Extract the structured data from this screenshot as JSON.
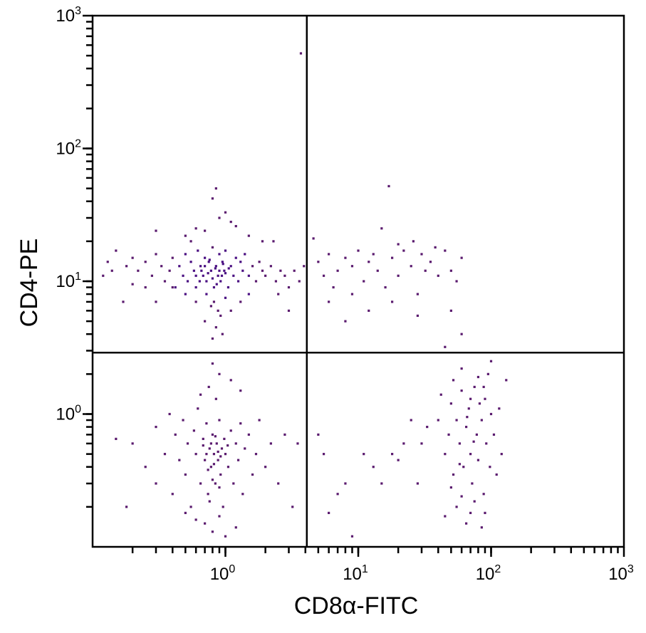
{
  "chart_data": {
    "type": "scatter",
    "title": "",
    "xlabel": "CD8α-FITC",
    "ylabel": "CD4-PE",
    "xscale": "log",
    "yscale": "log",
    "xlim": [
      0.1,
      1000
    ],
    "ylim": [
      0.1,
      1000
    ],
    "x_ticks": [
      {
        "base": "10",
        "exp": "0",
        "value": 1
      },
      {
        "base": "10",
        "exp": "1",
        "value": 10
      },
      {
        "base": "10",
        "exp": "2",
        "value": 100
      },
      {
        "base": "10",
        "exp": "3",
        "value": 1000
      }
    ],
    "y_ticks": [
      {
        "base": "10",
        "exp": "0",
        "value": 1
      },
      {
        "base": "10",
        "exp": "1",
        "value": 10
      },
      {
        "base": "10",
        "exp": "2",
        "value": 100
      },
      {
        "base": "10",
        "exp": "3",
        "value": 1000
      }
    ],
    "grid": false,
    "quadrant_gates": {
      "x": 4.1,
      "y": 2.9
    },
    "colors": {
      "dense": "#4a0f82",
      "sparse": "#5a1a6e",
      "axis": "#000000"
    },
    "points": [
      [
        3.7,
        520
      ],
      [
        0.85,
        50
      ],
      [
        17,
        52
      ],
      [
        0.8,
        42
      ],
      [
        1.0,
        33
      ],
      [
        0.9,
        30
      ],
      [
        1.1,
        28
      ],
      [
        0.6,
        25
      ],
      [
        0.7,
        24
      ],
      [
        1.2,
        26
      ],
      [
        0.5,
        22
      ],
      [
        0.3,
        24
      ],
      [
        1.5,
        22
      ],
      [
        1.9,
        20
      ],
      [
        2.3,
        20
      ],
      [
        0.55,
        20
      ],
      [
        0.15,
        17
      ],
      [
        0.13,
        14
      ],
      [
        0.14,
        12
      ],
      [
        0.12,
        11
      ],
      [
        0.18,
        13
      ],
      [
        0.2,
        15
      ],
      [
        0.22,
        12
      ],
      [
        0.25,
        14
      ],
      [
        0.28,
        11
      ],
      [
        0.3,
        16
      ],
      [
        0.33,
        13
      ],
      [
        0.35,
        10
      ],
      [
        0.38,
        12
      ],
      [
        0.4,
        15
      ],
      [
        0.42,
        9
      ],
      [
        0.45,
        13
      ],
      [
        0.48,
        11
      ],
      [
        0.5,
        16
      ],
      [
        0.52,
        10
      ],
      [
        0.55,
        14
      ],
      [
        0.58,
        12
      ],
      [
        0.6,
        9
      ],
      [
        0.62,
        17
      ],
      [
        0.65,
        13
      ],
      [
        0.68,
        11
      ],
      [
        0.7,
        15
      ],
      [
        0.72,
        10
      ],
      [
        0.75,
        14
      ],
      [
        0.78,
        12
      ],
      [
        0.8,
        18
      ],
      [
        0.82,
        9
      ],
      [
        0.85,
        13
      ],
      [
        0.88,
        11
      ],
      [
        0.9,
        16
      ],
      [
        0.92,
        10
      ],
      [
        0.95,
        14
      ],
      [
        0.98,
        12
      ],
      [
        1.0,
        17
      ],
      [
        1.05,
        9
      ],
      [
        1.1,
        13
      ],
      [
        1.15,
        11
      ],
      [
        1.2,
        15
      ],
      [
        1.25,
        10
      ],
      [
        1.3,
        14
      ],
      [
        1.35,
        12
      ],
      [
        1.4,
        16
      ],
      [
        1.5,
        11
      ],
      [
        1.6,
        13
      ],
      [
        1.7,
        10
      ],
      [
        1.8,
        14
      ],
      [
        1.9,
        12
      ],
      [
        2.0,
        11
      ],
      [
        2.2,
        13
      ],
      [
        2.4,
        10
      ],
      [
        2.6,
        12
      ],
      [
        2.8,
        11
      ],
      [
        3.0,
        9
      ],
      [
        3.3,
        12
      ],
      [
        3.6,
        10
      ],
      [
        3.9,
        13
      ],
      [
        0.66,
        12
      ],
      [
        0.74,
        11.5
      ],
      [
        0.84,
        12.5
      ],
      [
        0.94,
        11
      ],
      [
        0.7,
        13
      ],
      [
        0.8,
        10.5
      ],
      [
        0.9,
        12
      ],
      [
        1.0,
        11.5
      ],
      [
        0.6,
        11
      ],
      [
        0.76,
        14.5
      ],
      [
        0.86,
        9.5
      ],
      [
        1.06,
        12.5
      ],
      [
        0.64,
        10
      ],
      [
        0.96,
        13.5
      ],
      [
        0.72,
        8
      ],
      [
        0.82,
        7
      ],
      [
        0.88,
        6
      ],
      [
        0.92,
        5.5
      ],
      [
        0.78,
        6.5
      ],
      [
        1.0,
        7.5
      ],
      [
        0.7,
        5
      ],
      [
        0.85,
        4.5
      ],
      [
        0.95,
        4
      ],
      [
        0.8,
        3.7
      ],
      [
        1.1,
        6
      ],
      [
        0.6,
        7
      ],
      [
        0.5,
        8
      ],
      [
        1.3,
        7
      ],
      [
        1.5,
        8
      ],
      [
        0.4,
        9
      ],
      [
        2.5,
        8
      ],
      [
        0.3,
        7
      ],
      [
        0.25,
        9
      ],
      [
        0.2,
        9.5
      ],
      [
        3.0,
        6
      ],
      [
        0.17,
        7
      ],
      [
        5,
        14
      ],
      [
        5.5,
        11
      ],
      [
        6,
        16
      ],
      [
        6.5,
        9
      ],
      [
        7,
        12
      ],
      [
        8,
        15
      ],
      [
        9,
        13
      ],
      [
        10,
        17
      ],
      [
        11,
        10
      ],
      [
        12,
        14
      ],
      [
        13,
        16
      ],
      [
        14,
        12
      ],
      [
        15,
        25
      ],
      [
        16,
        9
      ],
      [
        18,
        15
      ],
      [
        20,
        11
      ],
      [
        22,
        17
      ],
      [
        25,
        13
      ],
      [
        28,
        8
      ],
      [
        30,
        16
      ],
      [
        32,
        12
      ],
      [
        35,
        14
      ],
      [
        40,
        11
      ],
      [
        45,
        17
      ],
      [
        50,
        12
      ],
      [
        55,
        10
      ],
      [
        60,
        15
      ],
      [
        38,
        18
      ],
      [
        26,
        20
      ],
      [
        20,
        19
      ],
      [
        9,
        8
      ],
      [
        12,
        6
      ],
      [
        18,
        7
      ],
      [
        28,
        5.5
      ],
      [
        50,
        6
      ],
      [
        60,
        4
      ],
      [
        8,
        5
      ],
      [
        4.6,
        21
      ],
      [
        6,
        7
      ],
      [
        45,
        3.2
      ],
      [
        0.2,
        0.6
      ],
      [
        0.25,
        0.4
      ],
      [
        0.3,
        0.8
      ],
      [
        0.3,
        0.3
      ],
      [
        0.35,
        0.5
      ],
      [
        0.38,
        1.0
      ],
      [
        0.4,
        0.25
      ],
      [
        0.42,
        0.7
      ],
      [
        0.45,
        0.45
      ],
      [
        0.48,
        0.9
      ],
      [
        0.5,
        0.35
      ],
      [
        0.52,
        0.6
      ],
      [
        0.55,
        0.2
      ],
      [
        0.58,
        0.75
      ],
      [
        0.6,
        0.5
      ],
      [
        0.62,
        1.1
      ],
      [
        0.65,
        0.3
      ],
      [
        0.68,
        0.65
      ],
      [
        0.7,
        0.45
      ],
      [
        0.72,
        0.85
      ],
      [
        0.74,
        0.25
      ],
      [
        0.76,
        0.55
      ],
      [
        0.78,
        0.4
      ],
      [
        0.8,
        0.7
      ],
      [
        0.82,
        0.5
      ],
      [
        0.84,
        0.3
      ],
      [
        0.86,
        0.6
      ],
      [
        0.88,
        0.45
      ],
      [
        0.9,
        0.9
      ],
      [
        0.92,
        0.35
      ],
      [
        0.94,
        0.55
      ],
      [
        0.96,
        0.2
      ],
      [
        0.98,
        0.65
      ],
      [
        1.0,
        0.5
      ],
      [
        1.05,
        0.4
      ],
      [
        1.1,
        0.75
      ],
      [
        1.15,
        0.3
      ],
      [
        1.2,
        0.6
      ],
      [
        1.25,
        0.45
      ],
      [
        1.3,
        0.85
      ],
      [
        1.35,
        0.25
      ],
      [
        1.4,
        0.55
      ],
      [
        1.5,
        0.7
      ],
      [
        1.6,
        0.35
      ],
      [
        1.7,
        0.5
      ],
      [
        1.8,
        0.9
      ],
      [
        2.0,
        0.4
      ],
      [
        2.2,
        0.6
      ],
      [
        2.5,
        0.3
      ],
      [
        2.8,
        0.7
      ],
      [
        0.7,
        0.15
      ],
      [
        0.8,
        0.13
      ],
      [
        0.9,
        0.17
      ],
      [
        1.0,
        0.12
      ],
      [
        0.6,
        0.16
      ],
      [
        1.2,
        0.14
      ],
      [
        0.5,
        0.18
      ],
      [
        0.85,
        1.3
      ],
      [
        0.75,
        1.6
      ],
      [
        0.9,
        2.0
      ],
      [
        0.8,
        2.4
      ],
      [
        1.1,
        1.8
      ],
      [
        0.65,
        1.4
      ],
      [
        1.3,
        1.5
      ],
      [
        0.72,
        0.5
      ],
      [
        0.78,
        0.6
      ],
      [
        0.82,
        0.42
      ],
      [
        0.88,
        0.52
      ],
      [
        0.74,
        0.38
      ],
      [
        0.84,
        0.68
      ],
      [
        0.92,
        0.48
      ],
      [
        0.68,
        0.58
      ],
      [
        0.8,
        0.32
      ],
      [
        0.9,
        0.28
      ],
      [
        0.76,
        0.22
      ],
      [
        1.04,
        0.58
      ],
      [
        0.15,
        0.65
      ],
      [
        0.18,
        0.2
      ],
      [
        3.5,
        0.6
      ],
      [
        3.2,
        0.2
      ],
      [
        5,
        0.7
      ],
      [
        5.5,
        0.5
      ],
      [
        6,
        0.18
      ],
      [
        7,
        0.25
      ],
      [
        8,
        0.3
      ],
      [
        9,
        0.12
      ],
      [
        11,
        0.5
      ],
      [
        13,
        0.4
      ],
      [
        15,
        0.3
      ],
      [
        18,
        0.5
      ],
      [
        20,
        0.45
      ],
      [
        22,
        0.6
      ],
      [
        25,
        0.9
      ],
      [
        28,
        0.3
      ],
      [
        30,
        0.6
      ],
      [
        33,
        0.8
      ],
      [
        40,
        0.9
      ],
      [
        42,
        1.4
      ],
      [
        45,
        0.5
      ],
      [
        48,
        0.7
      ],
      [
        50,
        1.2
      ],
      [
        52,
        0.35
      ],
      [
        55,
        0.9
      ],
      [
        58,
        0.6
      ],
      [
        60,
        1.5
      ],
      [
        62,
        0.4
      ],
      [
        65,
        0.8
      ],
      [
        68,
        1.1
      ],
      [
        70,
        0.5
      ],
      [
        72,
        0.3
      ],
      [
        75,
        1.6
      ],
      [
        78,
        0.7
      ],
      [
        80,
        0.45
      ],
      [
        82,
        1.2
      ],
      [
        85,
        0.9
      ],
      [
        88,
        0.25
      ],
      [
        90,
        1.3
      ],
      [
        92,
        0.6
      ],
      [
        95,
        2.0
      ],
      [
        98,
        0.4
      ],
      [
        100,
        1.0
      ],
      [
        105,
        0.7
      ],
      [
        110,
        0.35
      ],
      [
        115,
        1.1
      ],
      [
        120,
        0.5
      ],
      [
        130,
        1.8
      ],
      [
        100,
        2.5
      ],
      [
        90,
        0.18
      ],
      [
        55,
        0.2
      ],
      [
        65,
        0.15
      ],
      [
        75,
        0.22
      ],
      [
        85,
        0.14
      ],
      [
        50,
        0.28
      ],
      [
        60,
        0.24
      ],
      [
        70,
        0.18
      ],
      [
        45,
        0.17
      ],
      [
        80,
        1.9
      ],
      [
        60,
        2.2
      ],
      [
        70,
        1.3
      ],
      [
        88,
        1.6
      ],
      [
        52,
        1.8
      ],
      [
        66,
        0.95
      ],
      [
        74,
        0.62
      ],
      [
        58,
        0.42
      ]
    ]
  }
}
